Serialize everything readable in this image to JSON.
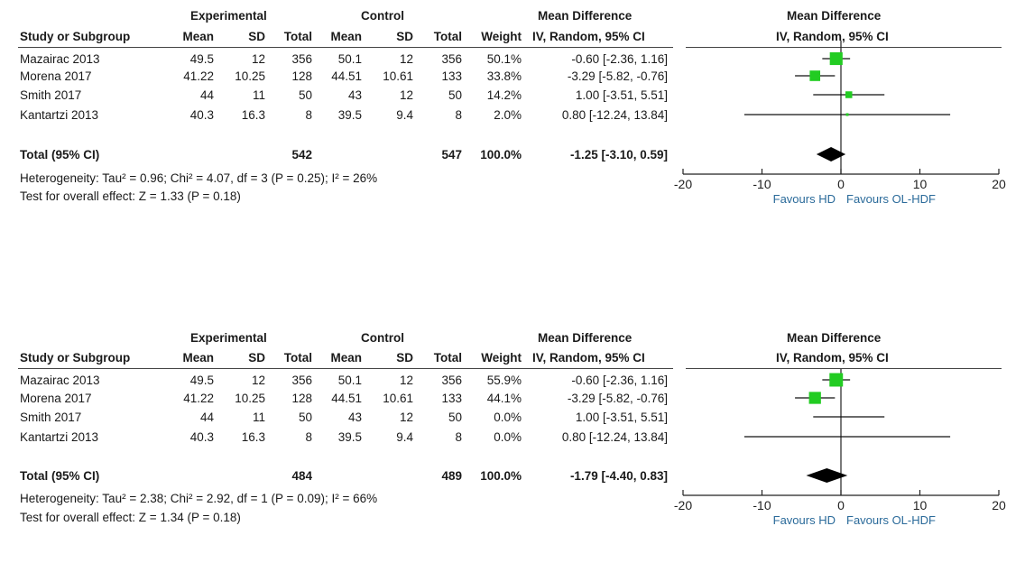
{
  "chart_data": [
    {
      "type": "forest",
      "headers": {
        "experimental": "Experimental",
        "control": "Control",
        "md_title": "Mean Difference",
        "md_method": "IV, Random, 95% CI",
        "plot_title": "Mean Difference",
        "plot_method": "IV, Random, 95% CI",
        "study": "Study or Subgroup",
        "mean": "Mean",
        "sd": "SD",
        "total": "Total",
        "weight": "Weight"
      },
      "studies": [
        {
          "name": "Mazairac 2013",
          "exp_mean": "49.5",
          "exp_sd": "12",
          "exp_total": "356",
          "ctl_mean": "50.1",
          "ctl_sd": "12",
          "ctl_total": "356",
          "weight": "50.1%",
          "ci_text": "-0.60 [-2.36, 1.16]",
          "md": -0.6,
          "lo": -2.36,
          "hi": 1.16,
          "w": 50.1
        },
        {
          "name": "Morena 2017",
          "exp_mean": "41.22",
          "exp_sd": "10.25",
          "exp_total": "128",
          "ctl_mean": "44.51",
          "ctl_sd": "10.61",
          "ctl_total": "133",
          "weight": "33.8%",
          "ci_text": "-3.29 [-5.82, -0.76]",
          "md": -3.29,
          "lo": -5.82,
          "hi": -0.76,
          "w": 33.8
        },
        {
          "name": "Smith 2017",
          "exp_mean": "44",
          "exp_sd": "11",
          "exp_total": "50",
          "ctl_mean": "43",
          "ctl_sd": "12",
          "ctl_total": "50",
          "weight": "14.2%",
          "ci_text": "1.00 [-3.51, 5.51]",
          "md": 1.0,
          "lo": -3.51,
          "hi": 5.51,
          "w": 14.2
        },
        {
          "name": "Kantartzi 2013",
          "exp_mean": "40.3",
          "exp_sd": "16.3",
          "exp_total": "8",
          "ctl_mean": "39.5",
          "ctl_sd": "9.4",
          "ctl_total": "8",
          "weight": "2.0%",
          "ci_text": "0.80 [-12.24, 13.84]",
          "md": 0.8,
          "lo": -12.24,
          "hi": 13.84,
          "w": 2.0
        }
      ],
      "total": {
        "label": "Total (95% CI)",
        "exp_total": "542",
        "ctl_total": "547",
        "weight": "100.0%",
        "ci_text": "-1.25 [-3.10, 0.59]",
        "md": -1.25,
        "lo": -3.1,
        "hi": 0.59
      },
      "heterogeneity": "Heterogeneity: Tau² = 0.96; Chi² = 4.07, df = 3 (P = 0.25); I² = 26%",
      "overall_effect": "Test for overall effect: Z = 1.33 (P = 0.18)",
      "xlim": [
        -20,
        20
      ],
      "ticks": [
        "-20",
        "-10",
        "0",
        "10",
        "20"
      ],
      "tick_values": [
        -20,
        -10,
        0,
        10,
        20
      ],
      "favours_left": "Favours HD",
      "favours_right": "Favours OL-HDF",
      "marker_color": "#22cc22"
    },
    {
      "type": "forest",
      "headers": {
        "experimental": "Experimental",
        "control": "Control",
        "md_title": "Mean Difference",
        "md_method": "IV, Random, 95% CI",
        "plot_title": "Mean Difference",
        "plot_method": "IV, Random, 95% CI",
        "study": "Study or Subgroup",
        "mean": "Mean",
        "sd": "SD",
        "total": "Total",
        "weight": "Weight"
      },
      "studies": [
        {
          "name": "Mazairac 2013",
          "exp_mean": "49.5",
          "exp_sd": "12",
          "exp_total": "356",
          "ctl_mean": "50.1",
          "ctl_sd": "12",
          "ctl_total": "356",
          "weight": "55.9%",
          "ci_text": "-0.60 [-2.36, 1.16]",
          "md": -0.6,
          "lo": -2.36,
          "hi": 1.16,
          "w": 55.9
        },
        {
          "name": "Morena 2017",
          "exp_mean": "41.22",
          "exp_sd": "10.25",
          "exp_total": "128",
          "ctl_mean": "44.51",
          "ctl_sd": "10.61",
          "ctl_total": "133",
          "weight": "44.1%",
          "ci_text": "-3.29 [-5.82, -0.76]",
          "md": -3.29,
          "lo": -5.82,
          "hi": -0.76,
          "w": 44.1
        },
        {
          "name": "Smith 2017",
          "exp_mean": "44",
          "exp_sd": "11",
          "exp_total": "50",
          "ctl_mean": "43",
          "ctl_sd": "12",
          "ctl_total": "50",
          "weight": "0.0%",
          "ci_text": "1.00 [-3.51, 5.51]",
          "md": 1.0,
          "lo": -3.51,
          "hi": 5.51,
          "w": 0.0
        },
        {
          "name": "Kantartzi 2013",
          "exp_mean": "40.3",
          "exp_sd": "16.3",
          "exp_total": "8",
          "ctl_mean": "39.5",
          "ctl_sd": "9.4",
          "ctl_total": "8",
          "weight": "0.0%",
          "ci_text": "0.80 [-12.24, 13.84]",
          "md": 0.8,
          "lo": -12.24,
          "hi": 13.84,
          "w": 0.0
        }
      ],
      "total": {
        "label": "Total (95% CI)",
        "exp_total": "484",
        "ctl_total": "489",
        "weight": "100.0%",
        "ci_text": "-1.79 [-4.40, 0.83]",
        "md": -1.79,
        "lo": -4.4,
        "hi": 0.83
      },
      "heterogeneity": "Heterogeneity: Tau² = 2.38; Chi² = 2.92, df = 1 (P = 0.09); I² = 66%",
      "overall_effect": "Test for overall effect: Z = 1.34 (P = 0.18)",
      "xlim": [
        -20,
        20
      ],
      "ticks": [
        "-20",
        "-10",
        "0",
        "10",
        "20"
      ],
      "tick_values": [
        -20,
        -10,
        0,
        10,
        20
      ],
      "favours_left": "Favours HD",
      "favours_right": "Favours OL-HDF",
      "marker_color": "#22cc22"
    }
  ]
}
